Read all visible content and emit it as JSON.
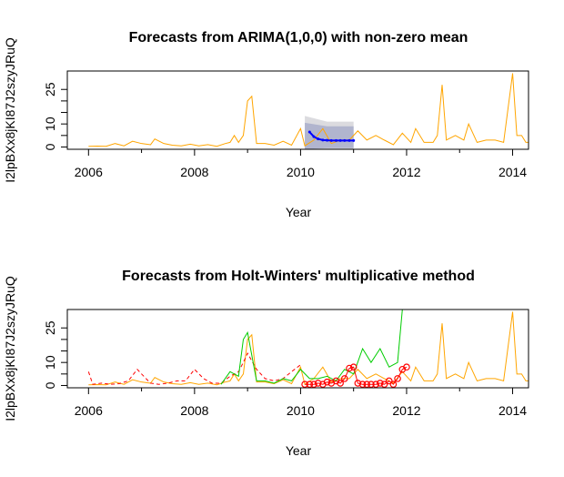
{
  "chart_data": [
    {
      "type": "line",
      "title": "Forecasts from ARIMA(1,0,0) with non-zero mean",
      "xlabel": "Year",
      "ylabel": "I2lpBXx8jKI87J2szyJRuQ",
      "xlim": [
        2005.6,
        2014.3
      ],
      "ylim": [
        -1,
        33
      ],
      "xticks": [
        2006,
        2008,
        2010,
        2012,
        2014
      ],
      "yticks": [
        0,
        10,
        25
      ],
      "colors": {
        "observed": "#FFA500",
        "forecast": "#0000FF",
        "band95": "#DBDBDF",
        "band80": "#B1B5CE"
      },
      "series": [
        {
          "role": "observed",
          "x": [
            2006.0,
            2006.17,
            2006.33,
            2006.5,
            2006.67,
            2006.83,
            2007.0,
            2007.17,
            2007.25,
            2007.42,
            2007.58,
            2007.75,
            2007.92,
            2008.08,
            2008.25,
            2008.42,
            2008.58,
            2008.67,
            2008.75,
            2008.83,
            2008.92,
            2009.0,
            2009.08,
            2009.17,
            2009.33,
            2009.5,
            2009.67,
            2009.83,
            2010.0,
            2010.08,
            2010.25,
            2010.42,
            2010.58,
            2010.75,
            2010.92,
            2011.08,
            2011.25,
            2011.42,
            2011.58,
            2011.75,
            2011.92,
            2012.08,
            2012.17,
            2012.33,
            2012.5,
            2012.58,
            2012.67,
            2012.75,
            2012.92,
            2013.08,
            2013.17,
            2013.33,
            2013.5,
            2013.67,
            2013.83,
            2014.0,
            2014.08,
            2014.17,
            2014.25,
            2014.3
          ],
          "values": [
            0.3,
            0.4,
            0.3,
            1.5,
            0.5,
            2.5,
            1.5,
            1,
            3.5,
            1.5,
            0.8,
            0.5,
            1.2,
            0.5,
            1,
            0.3,
            1.5,
            2,
            5,
            2,
            5,
            20,
            22,
            1.5,
            1.5,
            0.8,
            2.5,
            0.8,
            8,
            0.5,
            3,
            8,
            1.5,
            3,
            3,
            7,
            3,
            5,
            3,
            1,
            6,
            2,
            8,
            2,
            2,
            5,
            27,
            3,
            5,
            3,
            10,
            2,
            3,
            3,
            2,
            32,
            5,
            5,
            2,
            2
          ]
        },
        {
          "role": "forecast",
          "x": [
            2010.17,
            2010.25,
            2010.33,
            2010.42,
            2010.5,
            2010.58,
            2010.67,
            2010.75,
            2010.83,
            2010.92,
            2011.0
          ],
          "values": [
            6.5,
            4.5,
            3.5,
            3.0,
            2.9,
            2.8,
            2.8,
            2.8,
            2.8,
            2.8,
            2.8
          ]
        }
      ],
      "bands": {
        "x": [
          2010.08,
          2010.5,
          2011.0
        ],
        "lo95": [
          -1,
          -1,
          -1
        ],
        "hi95": [
          13.5,
          11,
          11
        ],
        "lo80": [
          -1,
          -0.5,
          -0.5
        ],
        "hi80": [
          10.5,
          9,
          9
        ]
      }
    },
    {
      "type": "line",
      "title": "Forecasts from Holt-Winters' multiplicative method",
      "xlabel": "Year",
      "ylabel": "I2lpBXx8jKI87J2szyJRuQ",
      "xlim": [
        2005.6,
        2014.3
      ],
      "ylim": [
        -1,
        33
      ],
      "xticks": [
        2006,
        2008,
        2010,
        2012,
        2014
      ],
      "yticks": [
        0,
        10,
        25
      ],
      "colors": {
        "observed": "#FFA500",
        "fitted": "#FF0000",
        "forecast": "#00CC00",
        "actual_markers": "#FF0000"
      },
      "series": [
        {
          "role": "observed",
          "x": [
            2006.0,
            2006.17,
            2006.33,
            2006.5,
            2006.67,
            2006.83,
            2007.0,
            2007.17,
            2007.25,
            2007.42,
            2007.58,
            2007.75,
            2007.92,
            2008.08,
            2008.25,
            2008.42,
            2008.58,
            2008.67,
            2008.75,
            2008.83,
            2008.92,
            2009.0,
            2009.08,
            2009.17,
            2009.33,
            2009.5,
            2009.67,
            2009.83,
            2010.0,
            2010.08,
            2010.25,
            2010.42,
            2010.58,
            2010.75,
            2010.92,
            2011.08,
            2011.25,
            2011.42,
            2011.58,
            2011.75,
            2011.92,
            2012.08,
            2012.17,
            2012.33,
            2012.5,
            2012.58,
            2012.67,
            2012.75,
            2012.92,
            2013.08,
            2013.17,
            2013.33,
            2013.5,
            2013.67,
            2013.83,
            2014.0,
            2014.08,
            2014.17,
            2014.25,
            2014.3
          ],
          "values": [
            0.3,
            0.4,
            0.3,
            1.5,
            0.5,
            2.5,
            1.5,
            1,
            3.5,
            1.5,
            0.8,
            0.5,
            1.2,
            0.5,
            1,
            0.3,
            1.5,
            2,
            5,
            2,
            5,
            20,
            22,
            1.5,
            1.5,
            0.8,
            2.5,
            0.8,
            8,
            0.5,
            3,
            8,
            1.5,
            3,
            3,
            7,
            3,
            5,
            3,
            1,
            6,
            2,
            8,
            2,
            2,
            5,
            27,
            3,
            5,
            3,
            10,
            2,
            3,
            3,
            2,
            32,
            5,
            5,
            2,
            2
          ]
        },
        {
          "role": "fitted",
          "dashed": true,
          "x": [
            2006.0,
            2006.08,
            2006.25,
            2006.42,
            2006.58,
            2006.75,
            2006.92,
            2007.0,
            2007.17,
            2007.33,
            2007.5,
            2007.67,
            2007.83,
            2008.0,
            2008.17,
            2008.33,
            2008.5,
            2008.67,
            2008.83,
            2008.92,
            2009.0,
            2009.17,
            2009.33,
            2009.5,
            2009.67,
            2009.83,
            2010.0
          ],
          "values": [
            6,
            0.5,
            1,
            0.5,
            0.8,
            2,
            7,
            5,
            1,
            0.5,
            1,
            2,
            2,
            7,
            3,
            1,
            1,
            4,
            6,
            10,
            14,
            7,
            3,
            2,
            3,
            6,
            9
          ]
        },
        {
          "role": "forecast",
          "x": [
            2008.5,
            2008.67,
            2008.83,
            2008.92,
            2009.0,
            2009.17,
            2009.33,
            2009.5,
            2009.67,
            2009.83,
            2010.0,
            2010.17,
            2010.33,
            2010.5,
            2010.67,
            2010.83,
            2011.0,
            2011.17,
            2011.33,
            2011.5,
            2011.67,
            2011.83,
            2011.92
          ],
          "values": [
            0.5,
            6,
            4,
            20,
            23,
            2,
            2,
            1,
            3,
            2,
            7,
            3,
            3,
            4,
            2,
            7,
            5,
            16,
            10,
            16,
            8,
            10,
            33
          ]
        },
        {
          "role": "actual_markers",
          "x": [
            2010.08,
            2010.17,
            2010.25,
            2010.33,
            2010.42,
            2010.5,
            2010.58,
            2010.67,
            2010.75,
            2010.83,
            2010.92,
            2011.0,
            2011.08,
            2011.17,
            2011.25,
            2011.33,
            2011.42,
            2011.5,
            2011.58,
            2011.67,
            2011.75,
            2011.83,
            2011.92,
            2012.0
          ],
          "values": [
            0.5,
            0.5,
            0.5,
            1,
            0.5,
            1.5,
            1,
            2,
            1,
            3,
            7.5,
            8,
            1,
            0.5,
            0.5,
            0.5,
            0.5,
            1,
            0.5,
            2,
            0.5,
            3,
            7,
            8
          ]
        }
      ]
    }
  ]
}
